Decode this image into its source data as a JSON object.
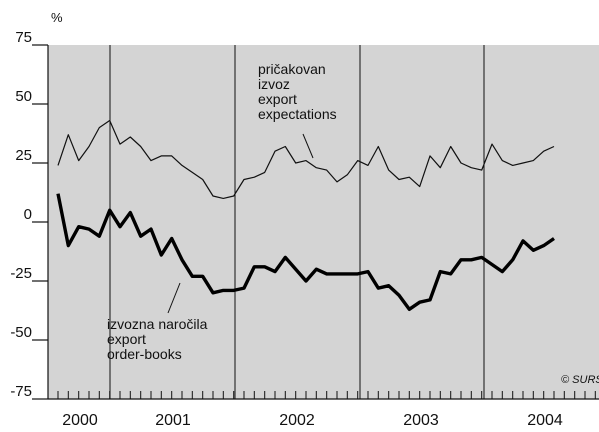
{
  "chart_data": {
    "type": "line",
    "unit_label": "%",
    "ylim": [
      -75,
      75
    ],
    "yticks": [
      75,
      50,
      25,
      0,
      -25,
      -50,
      -75
    ],
    "ytick_labels": [
      "75",
      "50",
      "25",
      "0",
      "-25",
      "-50",
      "-75"
    ],
    "x_start_year": 2000,
    "x_months": 58,
    "year_labels": [
      "2000",
      "2001",
      "2002",
      "2003",
      "2004"
    ],
    "grid": "vertical lines at year boundaries",
    "background_color": "#d4d4d4",
    "series": [
      {
        "name": "pričakovan izvoz export expectations",
        "label_lines": [
          "pričakovan",
          "izvoz",
          "export",
          "expectations"
        ],
        "color": "#111111",
        "line_weight": "thin",
        "values": [
          24,
          37,
          26,
          32,
          40,
          43,
          33,
          36,
          32,
          26,
          28,
          28,
          24,
          21,
          18,
          11,
          10,
          11,
          18,
          19,
          21,
          30,
          32,
          25,
          26,
          23,
          22,
          17,
          20,
          26,
          24,
          32,
          22,
          18,
          19,
          15,
          28,
          23,
          32,
          25,
          23,
          22,
          33,
          26,
          24,
          25,
          26,
          30,
          32
        ]
      },
      {
        "name": "izvozna naročila export order-books",
        "label_lines": [
          "izvozna naročila",
          "export",
          "order-books"
        ],
        "color": "#000000",
        "line_weight": "thick",
        "values": [
          12,
          -10,
          -2,
          -3,
          -6,
          5,
          -2,
          4,
          -6,
          -3,
          -14,
          -7,
          -16,
          -23,
          -23,
          -30,
          -29,
          -29,
          -28,
          -19,
          -19,
          -21,
          -15,
          -20,
          -25,
          -20,
          -22,
          -22,
          -22,
          -22,
          -21,
          -28,
          -27,
          -31,
          -37,
          -34,
          -33,
          -21,
          -22,
          -16,
          -16,
          -15,
          -18,
          -21,
          -16,
          -8,
          -12,
          -10,
          -7
        ]
      }
    ],
    "credit": "© SURS"
  }
}
